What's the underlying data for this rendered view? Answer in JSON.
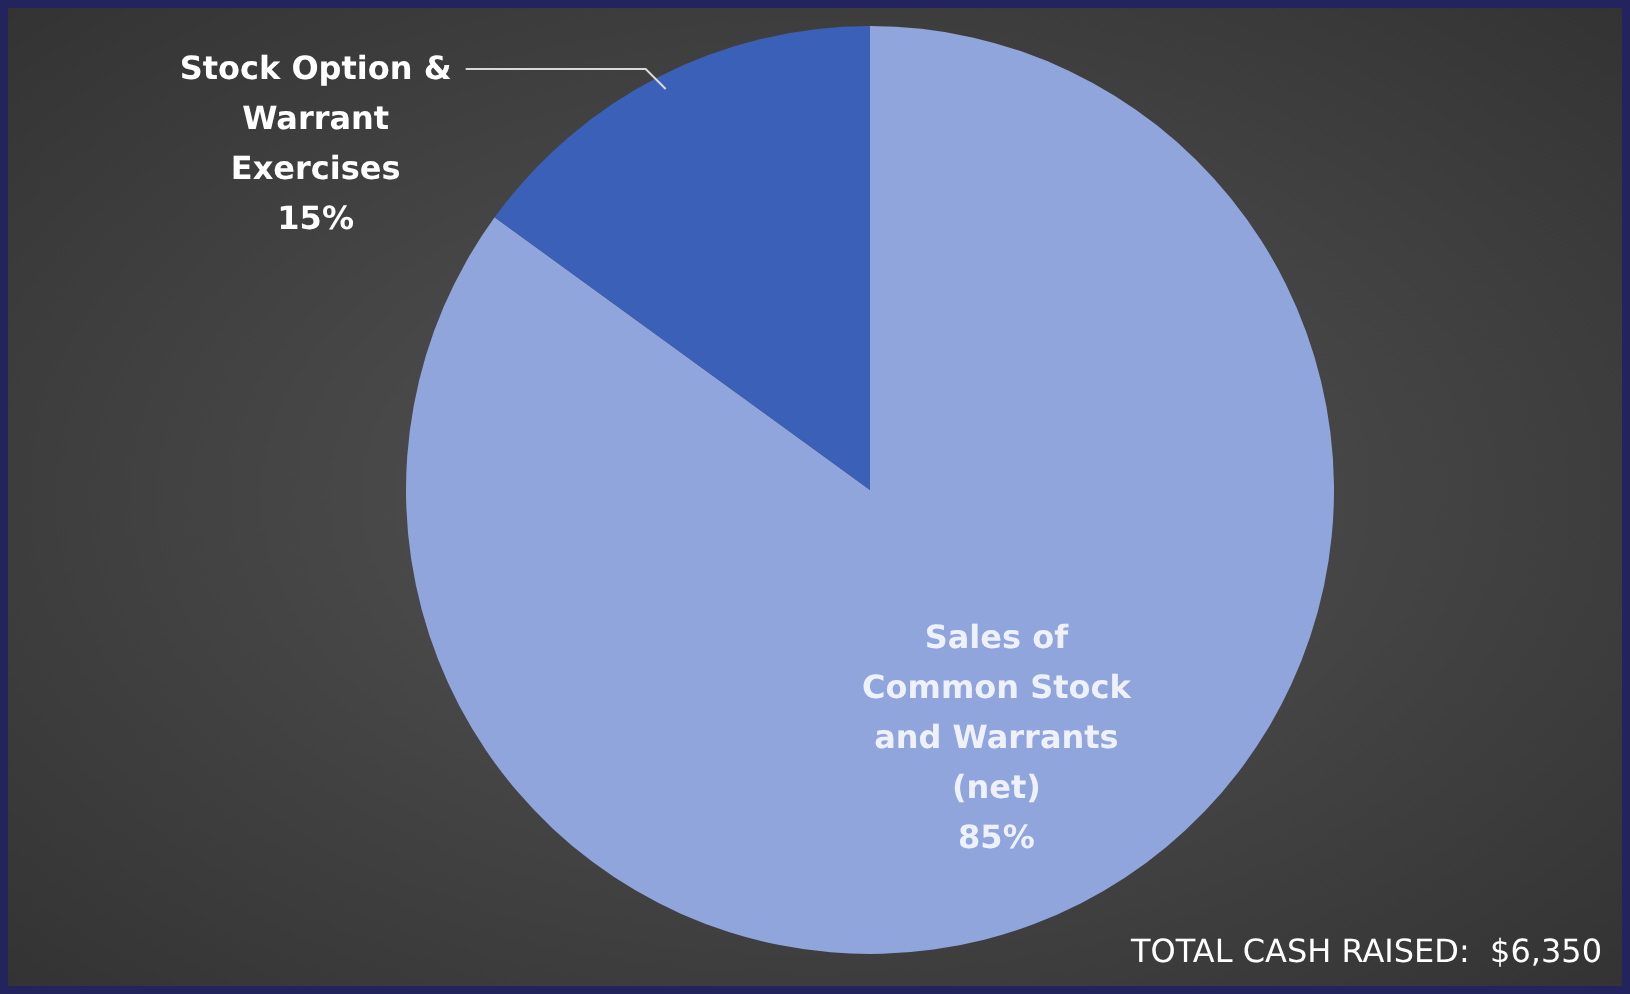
{
  "chart_data": {
    "type": "pie",
    "categories": [
      "Sales of Common Stock and Warrants (net)",
      "Stock Option & Warrant Exercises"
    ],
    "values": [
      85,
      15
    ],
    "colors": [
      "#8fa5dc",
      "#3b60b8"
    ],
    "value_labels": [
      "85%",
      "15%"
    ],
    "annotations": [
      "TOTAL CASH RAISED:  $6,350"
    ]
  }
}
